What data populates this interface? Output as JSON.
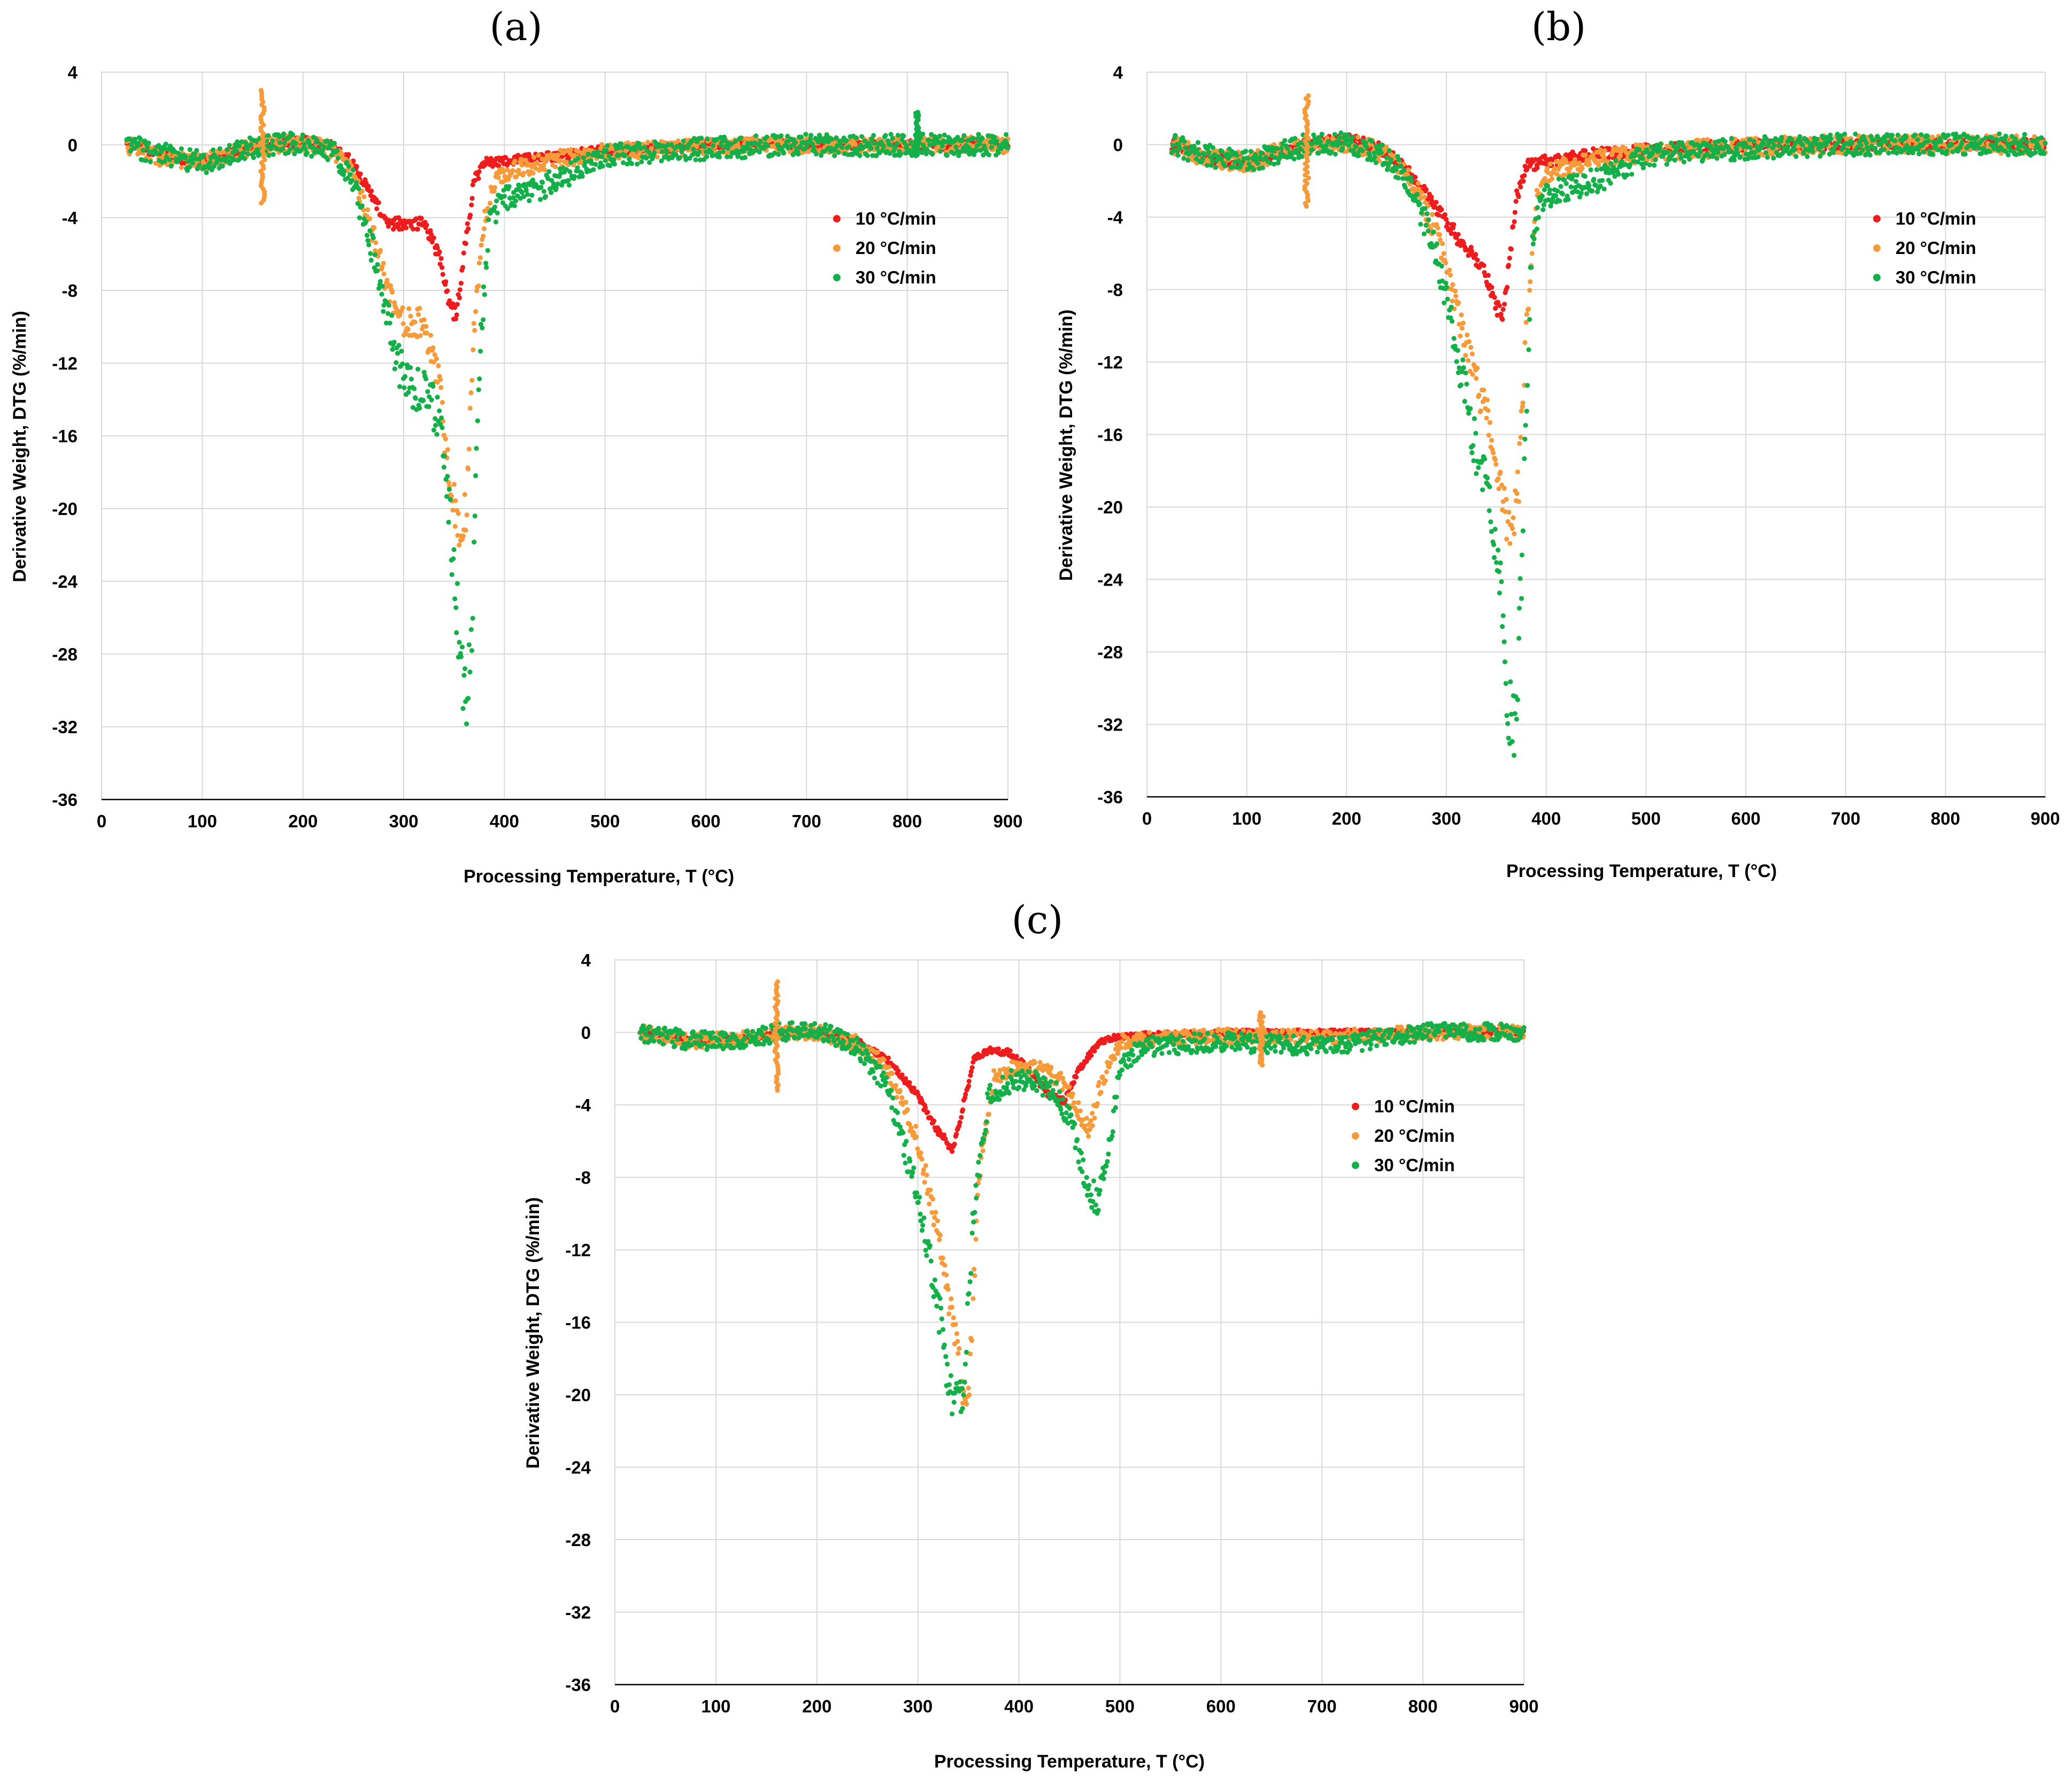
{
  "figure": {
    "panels": [
      "(a)",
      "(b)",
      "(c)"
    ]
  },
  "colors": {
    "10": "#ee1c1c",
    "20": "#f79a3a",
    "30": "#13b04a"
  },
  "chart_data": [
    {
      "type": "scatter",
      "panel": "(a)",
      "title": "(a)",
      "xlabel": "Processing Temperature, T (°C)",
      "ylabel": "Derivative Weight, DTG (%/min)",
      "xlim": [
        0,
        900
      ],
      "ylim": [
        -36,
        4
      ],
      "xticks": [
        "0",
        "100",
        "200",
        "300",
        "400",
        "500",
        "600",
        "700",
        "800",
        "900"
      ],
      "yticks": [
        "4",
        "0",
        "-4",
        "-8",
        "-12",
        "-16",
        "-20",
        "-24",
        "-28",
        "-32",
        "-36"
      ],
      "legend_position": "top-right",
      "series": [
        {
          "name": "10 °C/min",
          "color": "#ee1c1c",
          "noise": 0.25,
          "x": [
            25,
            60,
            100,
            140,
            160,
            200,
            230,
            250,
            270,
            285,
            300,
            320,
            335,
            345,
            352,
            360,
            370,
            380,
            400,
            450,
            500,
            600,
            700,
            800,
            900
          ],
          "y": [
            0,
            -0.5,
            -1,
            -0.3,
            0,
            0.2,
            0,
            -1,
            -3,
            -4.4,
            -4.3,
            -4.3,
            -6,
            -8.5,
            -9.5,
            -6,
            -2,
            -1,
            -0.9,
            -0.6,
            -0.3,
            0,
            0,
            0,
            0
          ]
        },
        {
          "name": "20 °C/min",
          "color": "#f79a3a",
          "noise": 0.45,
          "x": [
            25,
            60,
            100,
            140,
            160,
            200,
            230,
            250,
            270,
            290,
            300,
            320,
            335,
            345,
            355,
            362,
            370,
            380,
            390,
            400,
            450,
            500,
            600,
            700,
            800,
            900
          ],
          "y": [
            0,
            -0.7,
            -1,
            -0.3,
            0,
            0.1,
            -0.3,
            -1.5,
            -5,
            -9,
            -9.7,
            -9.8,
            -13,
            -18,
            -21.5,
            -20,
            -10,
            -4,
            -2,
            -1.5,
            -0.8,
            -0.4,
            -0.1,
            0,
            0,
            0
          ]
        },
        {
          "name": "30 °C/min",
          "color": "#13b04a",
          "noise": 0.6,
          "x": [
            25,
            60,
            100,
            140,
            160,
            200,
            230,
            250,
            270,
            290,
            300,
            320,
            335,
            345,
            355,
            362,
            368,
            375,
            385,
            400,
            450,
            500,
            600,
            700,
            800,
            900
          ],
          "y": [
            0,
            -0.5,
            -1,
            -0.3,
            0,
            0.1,
            -0.4,
            -2,
            -6,
            -11,
            -13,
            -13.5,
            -15,
            -20,
            -27,
            -31.5,
            -27,
            -12,
            -4,
            -3,
            -2,
            -0.6,
            -0.2,
            0,
            0,
            0
          ]
        }
      ],
      "spikes": [
        {
          "x": 160,
          "y": [
            3,
            -3.2
          ],
          "series": "20 °C/min"
        },
        {
          "x": 810,
          "y": [
            1.8,
            -0.6
          ],
          "series": "30 °C/min"
        }
      ]
    },
    {
      "type": "scatter",
      "panel": "(b)",
      "title": "(b)",
      "xlabel": "Processing Temperature, T (°C)",
      "ylabel": "Derivative Weight, DTG (%/min)",
      "xlim": [
        0,
        900
      ],
      "ylim": [
        -36,
        4
      ],
      "xticks": [
        "0",
        "100",
        "200",
        "300",
        "400",
        "500",
        "600",
        "700",
        "800",
        "900"
      ],
      "yticks": [
        "4",
        "0",
        "-4",
        "-8",
        "-12",
        "-16",
        "-20",
        "-24",
        "-28",
        "-32",
        "-36"
      ],
      "legend_position": "top-right",
      "series": [
        {
          "name": "10 °C/min",
          "color": "#ee1c1c",
          "noise": 0.3,
          "x": [
            25,
            60,
            100,
            140,
            160,
            200,
            230,
            250,
            270,
            290,
            310,
            330,
            345,
            355,
            362,
            370,
            380,
            400,
            450,
            500,
            600,
            700,
            800,
            900
          ],
          "y": [
            0,
            -0.7,
            -1,
            -0.3,
            0,
            0.3,
            -0.1,
            -0.8,
            -2,
            -3.5,
            -5,
            -6.2,
            -8,
            -9.6,
            -7,
            -3,
            -1.2,
            -0.9,
            -0.5,
            -0.3,
            0,
            0,
            0,
            0
          ]
        },
        {
          "name": "20 °C/min",
          "color": "#f79a3a",
          "noise": 0.5,
          "x": [
            25,
            60,
            100,
            140,
            160,
            200,
            230,
            250,
            270,
            290,
            310,
            330,
            345,
            355,
            365,
            372,
            380,
            390,
            400,
            450,
            500,
            600,
            700,
            800,
            900
          ],
          "y": [
            0,
            -0.7,
            -1,
            -0.3,
            0,
            0.1,
            -0.3,
            -1,
            -2.5,
            -5,
            -9,
            -13,
            -16,
            -19,
            -22,
            -19,
            -10,
            -3,
            -1.5,
            -0.8,
            -0.4,
            -0.1,
            0,
            0,
            0
          ]
        },
        {
          "name": "30 °C/min",
          "color": "#13b04a",
          "noise": 0.6,
          "x": [
            25,
            60,
            100,
            140,
            160,
            200,
            230,
            250,
            270,
            290,
            310,
            330,
            345,
            355,
            362,
            368,
            372,
            378,
            385,
            395,
            410,
            450,
            500,
            600,
            700,
            800,
            900
          ],
          "y": [
            0,
            -0.6,
            -1,
            -0.3,
            0,
            0.1,
            -0.4,
            -1.2,
            -3,
            -6,
            -11,
            -17,
            -20,
            -25,
            -31,
            -32.5,
            -30,
            -18,
            -6,
            -3,
            -2.5,
            -2,
            -0.6,
            -0.2,
            0,
            0,
            0
          ]
        }
      ],
      "spikes": [
        {
          "x": 160,
          "y": [
            2.7,
            -3.4
          ],
          "series": "20 °C/min"
        }
      ]
    },
    {
      "type": "scatter",
      "panel": "(c)",
      "title": "(c)",
      "xlabel": "Processing Temperature, T (°C)",
      "ylabel": "Derivative Weight, DTG (%/min)",
      "xlim": [
        0,
        900
      ],
      "ylim": [
        -36,
        4
      ],
      "xticks": [
        "0",
        "100",
        "200",
        "300",
        "400",
        "500",
        "600",
        "700",
        "800",
        "900"
      ],
      "yticks": [
        "4",
        "0",
        "-4",
        "-8",
        "-12",
        "-16",
        "-20",
        "-24",
        "-28",
        "-32",
        "-36"
      ],
      "legend_position": "top-right",
      "series": [
        {
          "name": "10 °C/min",
          "color": "#ee1c1c",
          "noise": 0.15,
          "x": [
            25,
            80,
            140,
            160,
            200,
            240,
            270,
            300,
            320,
            335,
            345,
            355,
            370,
            390,
            410,
            430,
            445,
            460,
            480,
            500,
            600,
            700,
            800,
            900
          ],
          "y": [
            0,
            -0.5,
            -0.3,
            0,
            0,
            -0.5,
            -1.5,
            -3.5,
            -5.5,
            -6.5,
            -4,
            -1.5,
            -1,
            -1.1,
            -2,
            -3.5,
            -3.8,
            -2,
            -0.5,
            -0.2,
            0,
            0,
            0,
            0
          ]
        },
        {
          "name": "20 °C/min",
          "color": "#f79a3a",
          "noise": 0.4,
          "x": [
            25,
            80,
            140,
            160,
            200,
            240,
            270,
            300,
            320,
            335,
            345,
            350,
            360,
            375,
            395,
            420,
            440,
            460,
            470,
            480,
            500,
            600,
            700,
            800,
            900
          ],
          "y": [
            0,
            -0.5,
            -0.3,
            0,
            0,
            -0.6,
            -2,
            -6,
            -11,
            -16,
            -20,
            -20.5,
            -8,
            -2.5,
            -2,
            -2,
            -2.5,
            -4.5,
            -5.5,
            -3,
            -0.5,
            -0.2,
            -0.3,
            0,
            0
          ]
        },
        {
          "name": "30 °C/min",
          "color": "#13b04a",
          "noise": 0.5,
          "x": [
            25,
            80,
            140,
            160,
            200,
            240,
            270,
            300,
            320,
            335,
            345,
            355,
            370,
            395,
            420,
            440,
            455,
            465,
            478,
            490,
            500,
            520,
            600,
            700,
            800,
            900
          ],
          "y": [
            0,
            -0.5,
            -0.3,
            0,
            0.2,
            -0.8,
            -3,
            -9,
            -15,
            -21,
            -20,
            -10,
            -3.5,
            -2.6,
            -2.8,
            -3.5,
            -5.5,
            -8,
            -9.5,
            -6,
            -2,
            -0.8,
            -0.5,
            -0.8,
            0,
            0
          ]
        }
      ],
      "spikes": [
        {
          "x": 160,
          "y": [
            2.8,
            -3.2
          ],
          "series": "20 °C/min"
        },
        {
          "x": 640,
          "y": [
            1.1,
            -1.8
          ],
          "series": "20 °C/min"
        }
      ]
    }
  ]
}
